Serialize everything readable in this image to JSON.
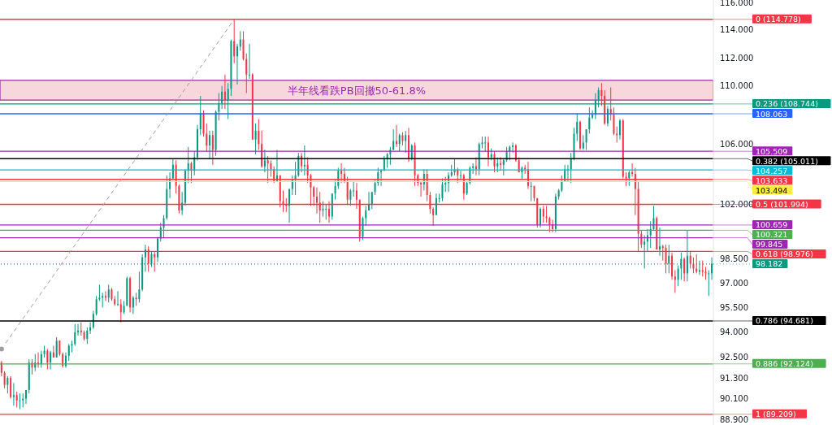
{
  "chart_data": {
    "type": "candlestick",
    "log": true,
    "tick_labels": "y",
    "ylim": [
      88.6,
      116.2
    ],
    "yticks": [
      {
        "value": 88.9,
        "label": "88.900"
      },
      {
        "value": 90.1,
        "label": "90.100"
      },
      {
        "value": 91.3,
        "label": "91.300"
      },
      {
        "value": 92.5,
        "label": "92.500"
      },
      {
        "value": 94,
        "label": "94.000"
      },
      {
        "value": 95.5,
        "label": "95.500"
      },
      {
        "value": 97,
        "label": "97.000"
      },
      {
        "value": 98.5,
        "label": "98.500"
      },
      {
        "value": 102,
        "label": "102.000"
      },
      {
        "value": 106,
        "label": "106.000"
      },
      {
        "value": 110,
        "label": "110.000"
      },
      {
        "value": 112,
        "label": "112.000"
      },
      {
        "value": 114,
        "label": "114.000"
      },
      {
        "value": 116,
        "label": "116.000"
      }
    ],
    "categories": [
      null,
      null,
      null,
      null,
      null,
      null,
      null,
      null,
      null,
      null,
      null,
      null,
      null,
      null,
      null,
      null,
      null,
      null,
      null,
      null,
      null,
      null,
      null,
      null,
      null,
      null,
      null,
      null,
      null,
      null,
      null,
      null,
      null,
      null,
      null,
      null,
      null,
      null,
      null,
      null,
      null,
      null,
      null,
      null,
      null,
      null,
      null,
      null,
      null,
      null,
      null,
      null,
      null,
      null,
      null,
      null,
      null,
      null,
      null,
      null,
      null,
      null,
      null,
      null,
      null,
      null,
      null,
      null,
      null,
      null,
      null,
      null,
      null,
      null,
      null,
      null,
      null,
      null,
      null,
      null,
      null,
      null,
      null,
      null,
      null,
      null,
      null,
      null,
      null,
      null,
      null,
      null,
      null,
      null,
      null,
      null,
      null,
      null,
      null,
      null,
      null,
      null,
      null,
      null,
      null,
      null,
      null,
      null,
      null,
      null,
      null,
      null,
      null,
      null,
      null,
      null,
      null,
      null,
      null,
      null,
      null,
      null,
      null,
      null,
      null,
      null,
      null,
      null,
      null,
      null,
      null,
      null,
      null,
      null,
      null,
      null,
      null,
      null,
      null,
      null,
      null,
      null,
      null,
      null,
      null,
      null,
      null,
      null,
      null,
      null,
      null,
      null,
      null,
      null,
      null,
      null,
      null,
      null,
      null,
      null,
      null,
      null,
      null,
      null,
      null,
      null,
      null,
      null,
      null,
      null,
      null,
      null,
      null,
      null,
      null,
      null,
      null,
      null,
      null,
      null,
      null,
      null,
      null,
      null,
      null,
      null,
      null,
      null,
      null,
      null,
      null,
      null,
      null,
      null,
      null,
      null,
      null,
      null,
      null,
      null,
      null,
      null,
      null,
      null,
      null,
      null,
      null,
      null,
      null,
      null,
      null,
      null,
      null,
      null,
      null,
      null,
      null,
      null,
      null,
      null,
      null,
      null,
      null,
      null,
      null,
      null,
      null,
      null,
      null,
      null,
      null,
      null,
      null
    ],
    "series": [
      {
        "type": "candlestick",
        "ohlc": [
          [
            92.2,
            92.3,
            91.4,
            91.6
          ],
          [
            91.6,
            91.7,
            90.7,
            90.9
          ],
          [
            90.9,
            91.4,
            90.4,
            91.3
          ],
          [
            91.3,
            91.4,
            90.1,
            90.2
          ],
          [
            90.2,
            91.0,
            89.7,
            90.3
          ],
          [
            90.3,
            90.5,
            89.6,
            90.0
          ],
          [
            90.0,
            90.4,
            89.5,
            90.0
          ],
          [
            90.0,
            90.4,
            89.6,
            90.1
          ],
          [
            90.1,
            90.6,
            89.8,
            90.6
          ],
          [
            90.6,
            92.4,
            90.4,
            92.2
          ],
          [
            92.2,
            92.4,
            91.5,
            91.9
          ],
          [
            91.9,
            92.7,
            91.7,
            92.2
          ],
          [
            92.2,
            92.8,
            91.9,
            92.1
          ],
          [
            92.1,
            92.9,
            91.9,
            92.7
          ],
          [
            92.7,
            93.2,
            92.5,
            92.9
          ],
          [
            92.9,
            93.0,
            91.8,
            92.2
          ],
          [
            92.2,
            92.9,
            91.8,
            92.8
          ],
          [
            92.8,
            93.2,
            92.5,
            92.5
          ],
          [
            92.5,
            93.7,
            92.5,
            93.5
          ],
          [
            93.5,
            93.5,
            92.6,
            92.7
          ],
          [
            92.7,
            92.8,
            91.9,
            92.0
          ],
          [
            92.0,
            92.8,
            91.9,
            92.6
          ],
          [
            92.6,
            93.3,
            92.3,
            93.2
          ],
          [
            93.2,
            93.5,
            92.8,
            93.3
          ],
          [
            93.3,
            94.5,
            93.2,
            94.0
          ],
          [
            94.0,
            94.5,
            93.8,
            94.1
          ],
          [
            94.1,
            94.6,
            93.8,
            94.0
          ],
          [
            94.0,
            94.1,
            93.5,
            93.6
          ],
          [
            93.6,
            94.3,
            93.3,
            94.1
          ],
          [
            94.1,
            94.6,
            93.9,
            94.3
          ],
          [
            94.3,
            95.3,
            94.2,
            95.1
          ],
          [
            95.1,
            96.2,
            95.0,
            96.0
          ],
          [
            96.0,
            96.9,
            95.9,
            96.1
          ],
          [
            96.1,
            96.4,
            95.5,
            96.2
          ],
          [
            96.2,
            96.5,
            95.9,
            96.1
          ],
          [
            96.1,
            96.9,
            95.8,
            96.6
          ],
          [
            96.6,
            96.7,
            95.9,
            96.0
          ],
          [
            96.0,
            96.2,
            95.6,
            95.7
          ],
          [
            95.7,
            96.5,
            95.6,
            95.7
          ],
          [
            95.7,
            96.0,
            94.6,
            95.2
          ],
          [
            95.2,
            95.9,
            95.1,
            95.6
          ],
          [
            95.6,
            97.4,
            95.6,
            97.3
          ],
          [
            97.3,
            97.4,
            95.2,
            95.5
          ],
          [
            95.5,
            96.2,
            95.1,
            96.1
          ],
          [
            96.1,
            96.4,
            95.6,
            96.0
          ],
          [
            96.0,
            97.7,
            95.8,
            96.6
          ],
          [
            96.6,
            98.8,
            96.5,
            98.6
          ],
          [
            98.6,
            99.4,
            97.7,
            99.1
          ],
          [
            99.1,
            99.3,
            97.7,
            98.2
          ],
          [
            98.2,
            99.0,
            98.0,
            98.8
          ],
          [
            98.8,
            99.0,
            97.7,
            98.6
          ],
          [
            98.6,
            99.9,
            98.3,
            99.8
          ],
          [
            99.8,
            100.8,
            99.6,
            100.5
          ],
          [
            100.5,
            101.3,
            99.8,
            101.1
          ],
          [
            101.1,
            103.9,
            101.0,
            103.0
          ],
          [
            103.0,
            104.1,
            102.4,
            103.7
          ],
          [
            103.7,
            105.0,
            103.6,
            104.6
          ],
          [
            104.6,
            104.9,
            102.7,
            103.2
          ],
          [
            103.2,
            103.3,
            101.4,
            101.6
          ],
          [
            101.6,
            102.8,
            101.3,
            102.1
          ],
          [
            102.1,
            104.3,
            101.9,
            104.2
          ],
          [
            104.2,
            105.8,
            103.4,
            104.7
          ],
          [
            104.7,
            104.8,
            103.4,
            104.2
          ],
          [
            104.2,
            105.5,
            103.9,
            105.1
          ],
          [
            105.1,
            107.3,
            104.9,
            107.0
          ],
          [
            107.0,
            109.3,
            106.6,
            108.1
          ],
          [
            108.1,
            108.3,
            106.5,
            106.7
          ],
          [
            106.7,
            107.4,
            105.5,
            105.9
          ],
          [
            105.9,
            106.9,
            105.0,
            106.6
          ],
          [
            106.6,
            106.9,
            104.6,
            105.6
          ],
          [
            105.6,
            108.3,
            105.2,
            108.2
          ],
          [
            108.2,
            109.5,
            107.6,
            108.8
          ],
          [
            108.8,
            110.0,
            108.4,
            109.6
          ],
          [
            109.6,
            110.8,
            108.4,
            109.0
          ],
          [
            109.0,
            110.2,
            107.7,
            109.8
          ],
          [
            109.8,
            113.3,
            109.3,
            113.2
          ],
          [
            113.2,
            114.8,
            111.6,
            112.1
          ],
          [
            112.1,
            113.0,
            110.1,
            112.8
          ],
          [
            112.8,
            113.9,
            112.5,
            113.3
          ],
          [
            113.3,
            113.9,
            111.8,
            111.9
          ],
          [
            111.9,
            112.3,
            109.5,
            110.8
          ],
          [
            110.8,
            113.0,
            110.5,
            110.8
          ],
          [
            110.8,
            110.9,
            106.3,
            106.3
          ],
          [
            106.3,
            107.4,
            105.3,
            106.9
          ],
          [
            106.9,
            107.7,
            105.6,
            106.0
          ],
          [
            106.0,
            106.9,
            104.4,
            104.5
          ],
          [
            104.5,
            105.6,
            104.1,
            104.9
          ],
          [
            104.9,
            105.2,
            103.4,
            104.7
          ],
          [
            104.7,
            104.9,
            103.8,
            104.3
          ],
          [
            104.3,
            104.5,
            103.4,
            103.5
          ],
          [
            103.5,
            105.6,
            103.5,
            103.9
          ],
          [
            103.9,
            103.9,
            101.8,
            102.2
          ],
          [
            102.2,
            102.9,
            101.5,
            102.0
          ],
          [
            102.0,
            102.4,
            101.5,
            101.9
          ],
          [
            101.9,
            103.0,
            100.8,
            103.0
          ],
          [
            103.0,
            103.9,
            102.6,
            103.6
          ],
          [
            103.6,
            104.8,
            102.6,
            103.9
          ],
          [
            103.9,
            105.4,
            103.8,
            105.2
          ],
          [
            105.2,
            105.4,
            104.1,
            104.5
          ],
          [
            104.5,
            105.9,
            103.9,
            104.6
          ],
          [
            104.6,
            105.1,
            103.4,
            103.9
          ],
          [
            103.9,
            104.0,
            101.9,
            103.1
          ],
          [
            103.1,
            103.2,
            101.9,
            102.5
          ],
          [
            102.5,
            103.1,
            101.4,
            102.1
          ],
          [
            102.1,
            102.8,
            100.8,
            101.6
          ],
          [
            101.6,
            102.2,
            101.2,
            101.7
          ],
          [
            101.7,
            102.0,
            101.0,
            101.7
          ],
          [
            101.7,
            102.2,
            100.8,
            101.2
          ],
          [
            101.2,
            102.7,
            101.0,
            102.7
          ],
          [
            102.7,
            103.6,
            102.3,
            103.2
          ],
          [
            103.2,
            104.4,
            103.0,
            104.2
          ],
          [
            104.2,
            104.7,
            103.4,
            104.0
          ],
          [
            104.0,
            104.4,
            103.4,
            103.5
          ],
          [
            103.5,
            103.8,
            102.0,
            102.3
          ],
          [
            102.3,
            103.0,
            101.9,
            102.9
          ],
          [
            102.9,
            103.5,
            102.5,
            102.9
          ],
          [
            102.9,
            103.4,
            101.7,
            102.3
          ],
          [
            102.3,
            102.3,
            99.6,
            99.9
          ],
          [
            99.9,
            101.2,
            99.7,
            101.1
          ],
          [
            101.1,
            101.9,
            100.6,
            101.6
          ],
          [
            101.6,
            102.8,
            101.6,
            102.0
          ],
          [
            102.0,
            102.8,
            101.7,
            102.8
          ],
          [
            102.8,
            103.6,
            102.6,
            103.4
          ],
          [
            103.4,
            104.4,
            103.2,
            104.1
          ],
          [
            104.1,
            104.3,
            103.2,
            104.2
          ],
          [
            104.2,
            105.2,
            104.2,
            105.0
          ],
          [
            105.0,
            105.4,
            104.4,
            105.3
          ],
          [
            105.3,
            105.8,
            104.6,
            105.6
          ],
          [
            105.6,
            107.0,
            105.6,
            106.2
          ],
          [
            106.2,
            107.3,
            105.8,
            106.0
          ],
          [
            106.0,
            106.7,
            105.5,
            106.6
          ],
          [
            106.6,
            106.8,
            105.9,
            106.2
          ],
          [
            106.2,
            106.9,
            105.4,
            106.6
          ],
          [
            106.6,
            107.1,
            104.8,
            105.0
          ],
          [
            105.0,
            106.0,
            104.9,
            105.9
          ],
          [
            105.9,
            106.1,
            103.2,
            103.9
          ],
          [
            103.9,
            104.0,
            103.2,
            103.4
          ],
          [
            103.4,
            103.5,
            102.5,
            103.3
          ],
          [
            103.3,
            104.3,
            102.9,
            104.0
          ],
          [
            104.0,
            104.3,
            102.2,
            102.6
          ],
          [
            102.6,
            102.8,
            101.4,
            101.7
          ],
          [
            101.7,
            101.8,
            100.6,
            101.3
          ],
          [
            101.3,
            102.7,
            101.3,
            102.4
          ],
          [
            102.4,
            102.7,
            102.1,
            102.4
          ],
          [
            102.4,
            103.7,
            102.2,
            103.3
          ],
          [
            103.3,
            103.8,
            102.8,
            103.4
          ],
          [
            103.4,
            104.1,
            102.8,
            103.9
          ],
          [
            103.9,
            104.6,
            103.8,
            104.1
          ],
          [
            104.1,
            105.0,
            103.9,
            104.3
          ],
          [
            104.3,
            104.4,
            103.4,
            103.9
          ],
          [
            103.9,
            104.2,
            103.6,
            103.9
          ],
          [
            103.9,
            104.0,
            102.3,
            102.7
          ],
          [
            102.7,
            103.5,
            102.6,
            103.4
          ],
          [
            103.4,
            104.5,
            103.3,
            104.4
          ],
          [
            104.4,
            104.7,
            104.0,
            104.5
          ],
          [
            104.5,
            105.1,
            103.9,
            104.3
          ],
          [
            104.3,
            106.1,
            103.9,
            106.0
          ],
          [
            106.0,
            106.5,
            105.7,
            106.1
          ],
          [
            106.1,
            106.5,
            105.5,
            106.1
          ],
          [
            106.1,
            106.5,
            104.5,
            105.1
          ],
          [
            105.1,
            105.7,
            104.9,
            105.3
          ],
          [
            105.3,
            105.5,
            104.1,
            104.5
          ],
          [
            104.5,
            105.1,
            104.1,
            104.7
          ],
          [
            104.7,
            105.1,
            104.2,
            104.6
          ],
          [
            104.6,
            105.0,
            103.9,
            104.9
          ],
          [
            104.9,
            105.8,
            104.8,
            105.5
          ],
          [
            105.5,
            105.9,
            104.9,
            105.8
          ],
          [
            105.8,
            106.1,
            105.4,
            105.9
          ],
          [
            105.9,
            106.0,
            104.8,
            104.9
          ],
          [
            104.9,
            105.1,
            104.1,
            104.1
          ],
          [
            104.1,
            104.5,
            103.6,
            104.4
          ],
          [
            104.4,
            104.6,
            104.0,
            104.3
          ],
          [
            104.3,
            104.8,
            103.0,
            103.2
          ],
          [
            103.2,
            103.5,
            102.2,
            103.2
          ],
          [
            103.2,
            103.2,
            102.2,
            102.4
          ],
          [
            102.4,
            102.4,
            100.5,
            100.7
          ],
          [
            100.7,
            101.8,
            100.5,
            101.7
          ],
          [
            101.7,
            101.9,
            100.8,
            101.2
          ],
          [
            101.2,
            101.9,
            100.8,
            101.1
          ],
          [
            101.1,
            101.2,
            100.2,
            100.7
          ],
          [
            100.7,
            101.0,
            100.2,
            100.4
          ],
          [
            100.4,
            102.7,
            100.2,
            102.5
          ],
          [
            102.5,
            103.0,
            102.3,
            102.9
          ],
          [
            102.9,
            103.9,
            102.8,
            103.5
          ],
          [
            103.5,
            104.6,
            103.5,
            104.3
          ],
          [
            104.3,
            104.6,
            103.5,
            104.3
          ],
          [
            104.3,
            105.4,
            103.4,
            105.0
          ],
          [
            105.0,
            107.1,
            104.9,
            106.7
          ],
          [
            106.7,
            108.1,
            106.2,
            107.5
          ],
          [
            107.5,
            107.6,
            105.6,
            105.7
          ],
          [
            105.7,
            106.6,
            105.6,
            106.1
          ],
          [
            106.1,
            107.0,
            105.6,
            107.0
          ],
          [
            107.0,
            108.5,
            106.7,
            107.8
          ],
          [
            107.8,
            108.3,
            107.7,
            108.0
          ],
          [
            108.0,
            109.5,
            107.7,
            109.0
          ],
          [
            109.0,
            109.9,
            108.5,
            109.7
          ],
          [
            109.7,
            110.2,
            108.6,
            109.3
          ],
          [
            109.3,
            109.7,
            107.3,
            107.4
          ],
          [
            107.4,
            108.6,
            107.2,
            108.4
          ],
          [
            108.4,
            109.9,
            107.6,
            108.0
          ],
          [
            108.0,
            108.5,
            106.6,
            106.7
          ],
          [
            106.7,
            107.2,
            106.1,
            106.6
          ],
          [
            106.6,
            107.7,
            106.3,
            107.6
          ],
          [
            107.6,
            107.7,
            103.7,
            103.8
          ],
          [
            103.8,
            104.1,
            103.2,
            103.7
          ],
          [
            103.7,
            104.2,
            103.2,
            104.1
          ],
          [
            104.1,
            104.7,
            103.8,
            104.0
          ],
          [
            104.0,
            104.4,
            101.3,
            103.0
          ],
          [
            103.0,
            103.5,
            99.0,
            100.1
          ],
          [
            100.1,
            100.3,
            99.2,
            99.4
          ],
          [
            99.4,
            100.0,
            97.9,
            99.6
          ],
          [
            99.6,
            100.4,
            99.0,
            100.0
          ],
          [
            100.0,
            100.9,
            99.2,
            100.4
          ],
          [
            100.4,
            101.9,
            100.3,
            101.1
          ],
          [
            101.1,
            101.2,
            99.1,
            99.1
          ],
          [
            99.1,
            100.5,
            98.7,
            99.3
          ],
          [
            99.3,
            99.4,
            98.4,
            99.2
          ],
          [
            99.2,
            99.4,
            97.6,
            98.2
          ],
          [
            98.2,
            99.4,
            97.6,
            98.7
          ],
          [
            98.7,
            98.9,
            97.2,
            97.4
          ],
          [
            97.4,
            97.8,
            96.4,
            97.2
          ],
          [
            97.2,
            98.1,
            96.8,
            97.9
          ],
          [
            97.9,
            98.9,
            97.2,
            98.5
          ],
          [
            98.5,
            98.6,
            97.1,
            97.6
          ],
          [
            97.6,
            100.3,
            97.1,
            98.7
          ],
          [
            98.7,
            99.0,
            97.9,
            98.2
          ],
          [
            98.2,
            98.6,
            97.6,
            97.9
          ],
          [
            97.9,
            98.8,
            97.6,
            97.7
          ],
          [
            97.7,
            98.4,
            97.5,
            97.8
          ],
          [
            97.8,
            98.4,
            97.4,
            97.7
          ],
          [
            97.7,
            98.0,
            97.2,
            97.6
          ],
          [
            97.6,
            97.8,
            96.2,
            97.6
          ],
          [
            97.6,
            98.6,
            97.2,
            98.2
          ]
        ],
        "colors": [
          "#f23645",
          "#f23645",
          "#089981",
          "#f23645",
          "#089981",
          "#f23645",
          "#089981",
          "#089981",
          "#089981",
          "#089981",
          "#f23645",
          "#089981",
          "#f23645",
          "#089981",
          "#089981",
          "#f23645",
          "#089981",
          "#f23645",
          "#089981",
          "#f23645",
          "#f23645",
          "#089981",
          "#089981",
          "#089981",
          "#089981",
          "#089981",
          "#f23645",
          "#f23645",
          "#089981",
          "#089981",
          "#089981",
          "#089981",
          "#089981",
          "#089981",
          "#f23645",
          "#089981",
          "#f23645",
          "#f23645",
          "#089981",
          "#f23645",
          "#089981",
          "#089981",
          "#f23645",
          "#089981",
          "#f23645",
          "#089981",
          "#089981",
          "#089981",
          "#f23645",
          "#089981",
          "#f23645",
          "#089981",
          "#089981",
          "#089981",
          "#089981",
          "#089981",
          "#089981",
          "#f23645",
          "#f23645",
          "#089981",
          "#089981",
          "#089981",
          "#f23645",
          "#089981",
          "#089981",
          "#089981",
          "#f23645",
          "#f23645",
          "#089981",
          "#f23645",
          "#089981",
          "#089981",
          "#089981",
          "#f23645",
          "#089981",
          "#089981",
          "#f23645",
          "#089981",
          "#089981",
          "#f23645",
          "#f23645",
          "#089981",
          "#f23645",
          "#089981",
          "#f23645",
          "#f23645",
          "#089981",
          "#f23645",
          "#f23645",
          "#f23645",
          "#089981",
          "#f23645",
          "#f23645",
          "#f23645",
          "#089981",
          "#089981",
          "#089981",
          "#089981",
          "#f23645",
          "#089981",
          "#f23645",
          "#f23645",
          "#f23645",
          "#f23645",
          "#f23645",
          "#089981",
          "#089981",
          "#f23645",
          "#089981",
          "#089981",
          "#089981",
          "#f23645",
          "#f23645",
          "#f23645",
          "#089981",
          "#089981",
          "#f23645",
          "#f23645",
          "#089981",
          "#089981",
          "#089981",
          "#089981",
          "#089981",
          "#089981",
          "#089981",
          "#089981",
          "#089981",
          "#089981",
          "#089981",
          "#f23645",
          "#089981",
          "#f23645",
          "#089981",
          "#f23645",
          "#089981",
          "#f23645",
          "#f23645",
          "#f23645",
          "#089981",
          "#f23645",
          "#f23645",
          "#f23645",
          "#089981",
          "#089981",
          "#089981",
          "#089981",
          "#089981",
          "#089981",
          "#089981",
          "#f23645",
          "#089981",
          "#f23645",
          "#089981",
          "#089981",
          "#089981",
          "#f23645",
          "#089981",
          "#089981",
          "#089981",
          "#f23645",
          "#089981",
          "#f23645",
          "#089981",
          "#f23645",
          "#089981",
          "#089981",
          "#089981",
          "#089981",
          "#f23645",
          "#f23645",
          "#089981",
          "#f23645",
          "#f23645",
          "#089981",
          "#f23645",
          "#f23645",
          "#089981",
          "#f23645",
          "#f23645",
          "#f23645",
          "#f23645",
          "#089981",
          "#089981",
          "#089981",
          "#089981",
          "#089981",
          "#089981",
          "#089981",
          "#089981",
          "#f23645",
          "#089981",
          "#089981",
          "#089981",
          "#089981",
          "#089981",
          "#089981",
          "#f23645",
          "#f23645",
          "#089981",
          "#f23645",
          "#f23645",
          "#f23645",
          "#089981",
          "#f23645",
          "#f23645",
          "#089981",
          "#f23645",
          "#f23645",
          "#f23645",
          "#f23645",
          "#089981",
          "#089981",
          "#089981",
          "#089981",
          "#f23645",
          "#089981",
          "#f23645",
          "#f23645",
          "#089981",
          "#f23645",
          "#f23645",
          "#089981",
          "#089981",
          "#f23645",
          "#089981",
          "#f23645",
          "#f23645",
          "#f23645",
          "#089981",
          "#f23645",
          "#f23645",
          "#089981",
          "#089981"
        ]
      },
      {
        "type": "line",
        "color": "#9e9e9e",
        "line_style": "dashed",
        "values": [
          93.0,
          null,
          null,
          null,
          null,
          null,
          null,
          null,
          null,
          null,
          null,
          null,
          null,
          null,
          null,
          null,
          null,
          null,
          null,
          null,
          null,
          null,
          null,
          null,
          null,
          null,
          null,
          null,
          null,
          null,
          null,
          null,
          null,
          null,
          null,
          null,
          null,
          null,
          null,
          null,
          null,
          null,
          null,
          null,
          null,
          null,
          null,
          null,
          null,
          null,
          null,
          null,
          null,
          null,
          null,
          null,
          null,
          null,
          null,
          null,
          null,
          null,
          null,
          null,
          null,
          null,
          null,
          null,
          null,
          null,
          null,
          null,
          null,
          null,
          null,
          null,
          114.778,
          null,
          null,
          null,
          null,
          null,
          null,
          null,
          null,
          null,
          null,
          null,
          null,
          null,
          null,
          null,
          null,
          null,
          null,
          null,
          null,
          null,
          null,
          null,
          null,
          null,
          null,
          null,
          null,
          null,
          null,
          null,
          null,
          null,
          null,
          null,
          null,
          null,
          null,
          null,
          null,
          null,
          null,
          null,
          null,
          null,
          null,
          null,
          null,
          null,
          null,
          null,
          null,
          null,
          null,
          null,
          null,
          null,
          null,
          null,
          null,
          null,
          null,
          null,
          null,
          null,
          null,
          null,
          null,
          null,
          null,
          null,
          null,
          null,
          null,
          null,
          null,
          null,
          null,
          null,
          null,
          null,
          null,
          null,
          null,
          null,
          null,
          null,
          null,
          null,
          null,
          null,
          null,
          null,
          null,
          null,
          null,
          null,
          null,
          null,
          null,
          null,
          null,
          null,
          null,
          null,
          null,
          null,
          null,
          null,
          null,
          null,
          null,
          null,
          null,
          null,
          null,
          null,
          null,
          null,
          null,
          null,
          null,
          null,
          null,
          null,
          null,
          null,
          null,
          null,
          null,
          null,
          null,
          null,
          null,
          null,
          null,
          null,
          null,
          null,
          null,
          null,
          null,
          null,
          null,
          null,
          null,
          null,
          null,
          null,
          null,
          null,
          null,
          null,
          null,
          null,
          null
        ]
      }
    ],
    "bands": [
      {
        "axis": "y",
        "from": 109.01,
        "to": 110.39,
        "label": "半年线看跌PB回撤50-61.8%",
        "color": "#9c27b0"
      }
    ],
    "ref_lines": [
      {
        "axis": "y",
        "value": 114.778,
        "label": "0 (114.778)",
        "color": "#f23645"
      },
      {
        "axis": "y",
        "value": 108.744,
        "label": "0.236 (108.744)",
        "color": "#089981"
      },
      {
        "axis": "y",
        "value": 108.063,
        "label": "108.063",
        "color": "#2962ff"
      },
      {
        "axis": "y",
        "value": 105.509,
        "label": "105.509",
        "color": "#9c27b0"
      },
      {
        "axis": "y",
        "value": 105.011,
        "label": "0.382 (105.011)",
        "color": "#000000"
      },
      {
        "axis": "y",
        "value": 104.257,
        "label": "104.257",
        "color": "#00bcd4"
      },
      {
        "axis": "y",
        "value": 103.633,
        "label": "103.633",
        "color": "#f23645"
      },
      {
        "axis": "y",
        "value": 103.494,
        "label": "103.494",
        "color": "#ffeb3b"
      },
      {
        "axis": "y",
        "value": 101.994,
        "label": "0.5 (101.994)",
        "color": "#f23645"
      },
      {
        "axis": "y",
        "value": 100.659,
        "label": "100.659",
        "color": "#9c27b0"
      },
      {
        "axis": "y",
        "value": 100.321,
        "label": "100.321",
        "color": "#4caf50"
      },
      {
        "axis": "y",
        "value": 99.845,
        "label": "99.845",
        "color": "#9c27b0"
      },
      {
        "axis": "y",
        "value": 98.976,
        "label": "0.618 (98.976)",
        "color": "#f23645"
      },
      {
        "axis": "y",
        "value": 98.182,
        "label": "98.182",
        "color": "#089981",
        "line_style": "dotted"
      },
      {
        "axis": "y",
        "value": 94.681,
        "label": "0.786 (94.681)",
        "color": "#000000"
      },
      {
        "axis": "y",
        "value": 92.124,
        "label": "0.886 (92.124)",
        "color": "#4caf50"
      },
      {
        "axis": "y",
        "value": 89.209,
        "label": "1 (89.209)",
        "color": "#f23645"
      }
    ]
  }
}
